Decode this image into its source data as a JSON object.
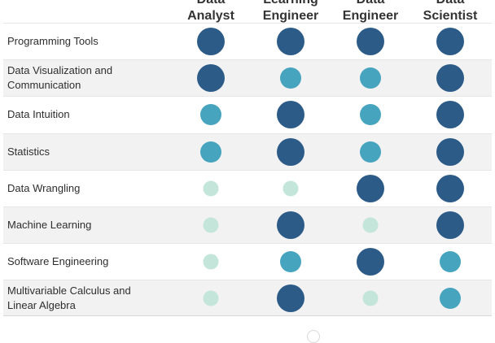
{
  "roles": [
    {
      "line1": "Data",
      "line2": "Analyst"
    },
    {
      "line1": "Learning",
      "line2": "Engineer"
    },
    {
      "line1": "Data",
      "line2": "Engineer"
    },
    {
      "line1": "Data",
      "line2": "Scientist"
    }
  ],
  "skills": [
    {
      "label": "Programming Tools",
      "levels": [
        "high",
        "high",
        "high",
        "high"
      ]
    },
    {
      "label": "Data Visualization and Communication",
      "levels": [
        "high",
        "medium",
        "medium",
        "high"
      ]
    },
    {
      "label": "Data Intuition",
      "levels": [
        "medium",
        "high",
        "medium",
        "high"
      ]
    },
    {
      "label": "Statistics",
      "levels": [
        "medium",
        "high",
        "medium",
        "high"
      ]
    },
    {
      "label": "Data Wrangling",
      "levels": [
        "low",
        "low",
        "high",
        "high"
      ]
    },
    {
      "label": "Machine Learning",
      "levels": [
        "low",
        "high",
        "low",
        "high"
      ]
    },
    {
      "label": "Software Engineering",
      "levels": [
        "low",
        "medium",
        "high",
        "medium"
      ]
    },
    {
      "label": "Multivariable Calculus and Linear Algebra",
      "levels": [
        "low",
        "high",
        "low",
        "medium"
      ]
    }
  ],
  "colors": {
    "high": "#2d5b88",
    "medium": "#46a4be",
    "low": "#c4e6da",
    "row_shade": "#f2f2f2"
  }
}
